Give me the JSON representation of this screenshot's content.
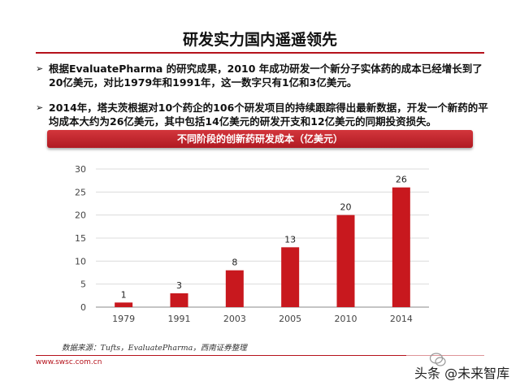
{
  "slide": {
    "title": "研发实力国内遥遥领先",
    "bullets": [
      "根据EvaluatePharma 的研究成果，2010 年成功研发一个新分子实体药的成本已经增长到了20亿美元，对比1979年和1991年，这一数字只有1亿和3亿美元。",
      "2014年，塔夫茨根据对10个药企的106个研发项目的持续跟踪得出最新数据，开发一个新药的平均成本大约为26亿美元，其中包括14亿美元的研发开支和12亿美元的同期投资损失。"
    ],
    "bullet_marker": "➢",
    "source_note": "数据来源：Tufts，EvaluatePharma，西南证券整理",
    "footer_url": "www.swsc.com.cn",
    "watermark": "头条 @未来智库"
  },
  "colors": {
    "accent": "#b5121b",
    "bar": "#c8181e",
    "banner": "#c0262d"
  },
  "chart_data": {
    "type": "bar",
    "title": "不同阶段的创新药研发成本（亿美元）",
    "categories": [
      "1979",
      "1991",
      "2003",
      "2005",
      "2010",
      "2014"
    ],
    "values": [
      1,
      3,
      8,
      13,
      20,
      26
    ],
    "yticks": [
      0,
      5,
      10,
      15,
      20,
      25,
      30
    ],
    "ylim": [
      0,
      30
    ],
    "xlabel": "",
    "ylabel": "",
    "grid": true,
    "legend": "none"
  }
}
